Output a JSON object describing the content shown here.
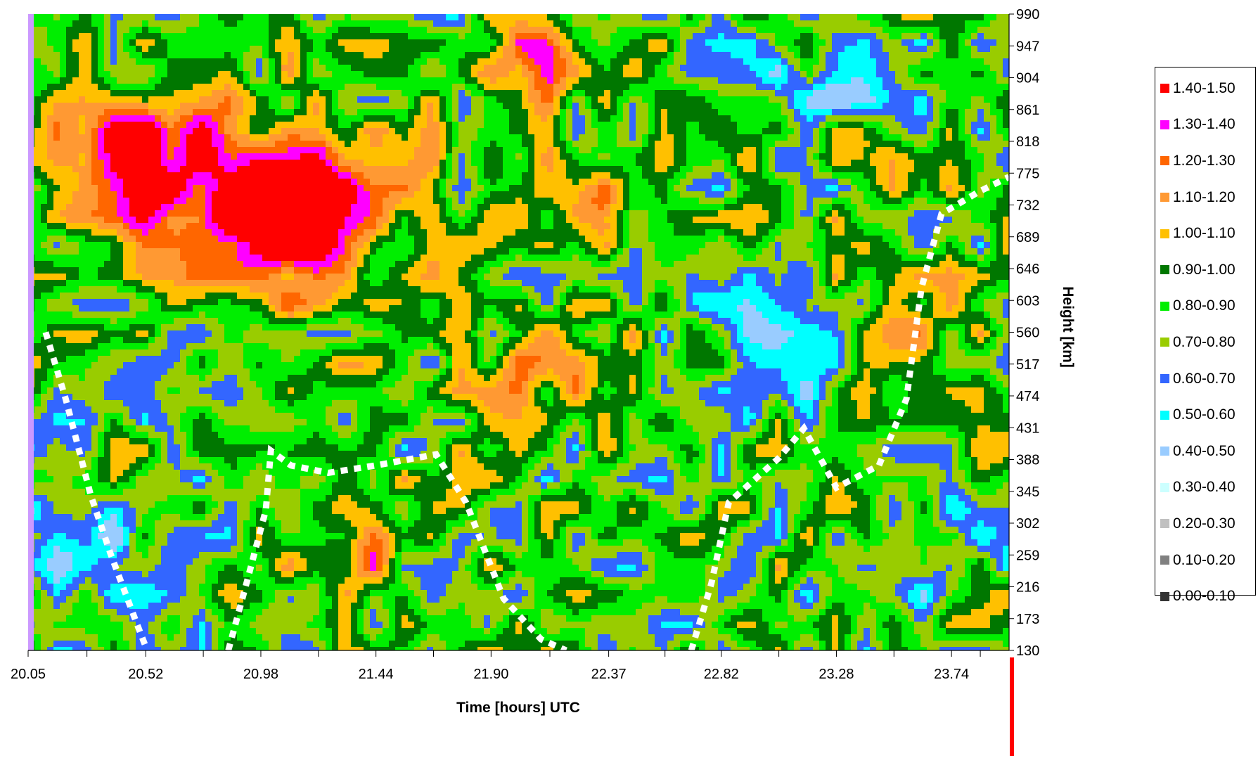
{
  "chart_data": {
    "type": "heatmap",
    "xlabel": "Time  [hours] UTC",
    "ylabel": "Height  [km]",
    "x_ticks": [
      "20.05",
      "20.52",
      "20.98",
      "21.44",
      "21.90",
      "22.37",
      "22.82",
      "23.28",
      "23.74"
    ],
    "y_ticks": [
      "990",
      "947",
      "904",
      "861",
      "818",
      "775",
      "732",
      "689",
      "646",
      "603",
      "560",
      "517",
      "474",
      "431",
      "388",
      "345",
      "302",
      "259",
      "216",
      "173",
      "130"
    ],
    "xlim": [
      20.05,
      23.97
    ],
    "ylim": [
      130,
      990
    ],
    "legend": [
      {
        "label": "1.40-1.50",
        "color": "#ff0000"
      },
      {
        "label": "1.30-1.40",
        "color": "#ff00ff"
      },
      {
        "label": "1.20-1.30",
        "color": "#ff6600"
      },
      {
        "label": "1.10-1.20",
        "color": "#ff9933"
      },
      {
        "label": "1.00-1.10",
        "color": "#ffc000"
      },
      {
        "label": "0.90-1.00",
        "color": "#007700"
      },
      {
        "label": "0.80-0.90",
        "color": "#00ee00"
      },
      {
        "label": "0.70-0.80",
        "color": "#99cc00"
      },
      {
        "label": "0.60-0.70",
        "color": "#3366ff"
      },
      {
        "label": "0.50-0.60",
        "color": "#00ffff"
      },
      {
        "label": "0.40-0.50",
        "color": "#99ccff"
      },
      {
        "label": "0.30-0.40",
        "color": "#ccffff"
      },
      {
        "label": "0.20-0.30",
        "color": "#c0c0c0"
      },
      {
        "label": "0.10-0.20",
        "color": "#808080"
      },
      {
        "label": "0.00-0.10",
        "color": "#333333"
      }
    ],
    "dotted_lines": [
      {
        "name": "",
        "color": "#ffffff",
        "points": [
          [
            20.12,
            560
          ],
          [
            20.2,
            470
          ],
          [
            20.3,
            340
          ],
          [
            20.38,
            260
          ],
          [
            20.48,
            170
          ],
          [
            20.52,
            135
          ]
        ]
      },
      {
        "name": "",
        "color": "#ffffff",
        "points": [
          [
            20.85,
            130
          ],
          [
            20.93,
            230
          ],
          [
            21.0,
            320
          ],
          [
            21.02,
            400
          ],
          [
            21.1,
            380
          ],
          [
            21.25,
            370
          ],
          [
            21.44,
            380
          ],
          [
            21.6,
            390
          ],
          [
            21.68,
            395
          ],
          [
            21.8,
            330
          ],
          [
            21.95,
            200
          ],
          [
            22.1,
            145
          ],
          [
            22.2,
            130
          ]
        ]
      },
      {
        "name": "",
        "color": "#ffffff",
        "points": [
          [
            22.7,
            130
          ],
          [
            22.78,
            220
          ],
          [
            22.85,
            330
          ],
          [
            22.95,
            360
          ],
          [
            23.05,
            390
          ],
          [
            23.15,
            430
          ],
          [
            23.28,
            350
          ],
          [
            23.45,
            380
          ],
          [
            23.56,
            470
          ],
          [
            23.62,
            620
          ],
          [
            23.7,
            720
          ],
          [
            23.85,
            750
          ],
          [
            23.97,
            770
          ]
        ]
      }
    ],
    "grid": false
  },
  "legend_title": ""
}
